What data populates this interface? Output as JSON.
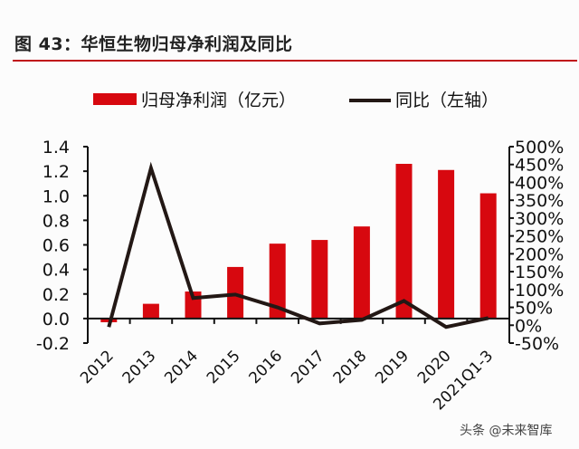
{
  "title": "图 43：华恒生物归母净利润及同比",
  "watermark": "头条 @未来智库",
  "chart_data": {
    "type": "bar+line",
    "title": "图 43：华恒生物归母净利润及同比",
    "categories": [
      "2012",
      "2013",
      "2014",
      "2015",
      "2016",
      "2017",
      "2018",
      "2019",
      "2020",
      "2021Q1-3"
    ],
    "series": [
      {
        "name": "归母净利润（亿元）",
        "type": "bar",
        "axis": "left",
        "color": "#d7080f",
        "values": [
          -0.03,
          0.12,
          0.22,
          0.42,
          0.61,
          0.64,
          0.75,
          1.26,
          1.21,
          1.02
        ]
      },
      {
        "name": "同比（左轴）",
        "type": "line",
        "axis": "right",
        "color": "#231815",
        "values": [
          -5,
          440,
          76,
          86,
          50,
          5,
          15,
          68,
          -5,
          20
        ]
      }
    ],
    "left_axis": {
      "ylim": [
        -0.2,
        1.4
      ],
      "ticks": [
        "-0.2",
        "0.0",
        "0.2",
        "0.4",
        "0.6",
        "0.8",
        "1.0",
        "1.2",
        "1.4"
      ]
    },
    "right_axis": {
      "ylim": [
        -50,
        500
      ],
      "ticks": [
        "-50%",
        "0%",
        "50%",
        "100%",
        "150%",
        "200%",
        "250%",
        "300%",
        "350%",
        "400%",
        "450%",
        "500%"
      ]
    },
    "legend_position": "top",
    "grid": false
  }
}
